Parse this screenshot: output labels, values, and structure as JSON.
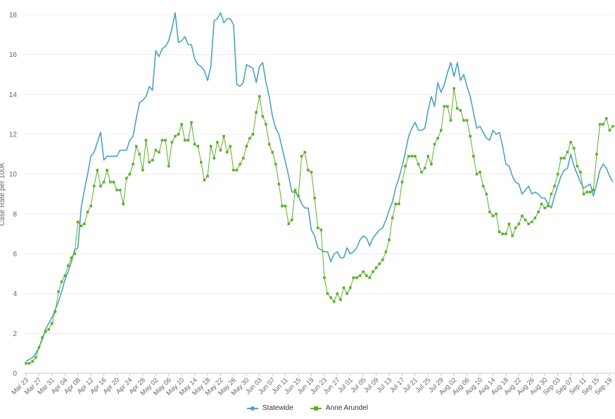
{
  "chart_data": {
    "type": "line",
    "title": "",
    "xlabel": "",
    "ylabel": "Case Rate per 100K",
    "ylim": [
      0,
      18
    ],
    "yticks": [
      0,
      2,
      4,
      6,
      8,
      10,
      12,
      14,
      16,
      18
    ],
    "grid": true,
    "legend_position": "bottom-center",
    "xtick_labels": [
      "Mar 23",
      "Mar 27",
      "Mar 31",
      "Apr 04",
      "Apr 08",
      "Apr 12",
      "Apr 16",
      "Apr 20",
      "Apr 24",
      "Apr 28",
      "May 02",
      "May 06",
      "May 10",
      "May 14",
      "May 18",
      "May 22",
      "May 26",
      "May 30",
      "Jun 03",
      "Jun 07",
      "Jun 11",
      "Jun 15",
      "Jun 19",
      "Jun 23",
      "Jun 27",
      "Jul 01",
      "Jul 05",
      "Jul 09",
      "Jul 13",
      "Jul 17",
      "Jul 21",
      "Jul 25",
      "Jul 29",
      "Aug 02",
      "Aug 06",
      "Aug 10",
      "Aug 14",
      "Aug 18",
      "Aug 22",
      "Aug 26",
      "Aug 30",
      "Sep 03",
      "Sep 07",
      "Sep 11",
      "Sep 15",
      "Sep 19"
    ],
    "series": [
      {
        "name": "Statewide",
        "color": "#4aa3bf",
        "marker": "none",
        "values": [
          0.6,
          0.7,
          0.8,
          1.0,
          1.3,
          1.7,
          2.2,
          2.5,
          2.8,
          3.2,
          3.6,
          4.1,
          4.7,
          5.1,
          5.6,
          6.2,
          6.3,
          8.3,
          9.2,
          10.0,
          10.9,
          11.1,
          11.6,
          12.1,
          10.7,
          10.9,
          10.9,
          10.9,
          10.9,
          11.2,
          11.2,
          11.2,
          11.7,
          11.9,
          12.8,
          13.6,
          13.7,
          13.9,
          14.4,
          14.2,
          16.2,
          15.9,
          16.3,
          16.4,
          16.7,
          17.3,
          18.1,
          16.6,
          16.7,
          16.9,
          16.5,
          16.5,
          15.8,
          15.5,
          15.4,
          15.2,
          14.7,
          15.4,
          17.7,
          17.8,
          18.1,
          17.6,
          17.8,
          17.8,
          17.5,
          14.5,
          14.4,
          14.6,
          15.5,
          15.4,
          15.3,
          14.6,
          15.4,
          15.6,
          14.6,
          13.9,
          12.9,
          12.3,
          12.0,
          11.3,
          10.6,
          9.9,
          9.1,
          9.1,
          8.9,
          8.5,
          8.3,
          8.3,
          7.2,
          6.9,
          6.3,
          6.2,
          6.1,
          6.1,
          5.6,
          6.0,
          6.1,
          5.8,
          5.8,
          6.3,
          6.0,
          6.1,
          6.3,
          6.7,
          6.9,
          6.8,
          6.4,
          6.8,
          7.0,
          7.2,
          7.3,
          7.7,
          8.2,
          8.6,
          9.3,
          9.8,
          10.4,
          11.1,
          11.9,
          12.3,
          12.6,
          12.2,
          12.2,
          12.3,
          13.2,
          13.9,
          13.4,
          14.6,
          14.1,
          14.5,
          15.1,
          15.6,
          14.9,
          15.6,
          14.7,
          15.0,
          14.4,
          13.9,
          13.1,
          12.3,
          12.4,
          12.1,
          11.8,
          11.7,
          12.2,
          12.0,
          12.1,
          11.4,
          10.5,
          10.4,
          9.9,
          9.6,
          9.5,
          9.0,
          9.2,
          9.4,
          9.0,
          9.1,
          9.0,
          8.8,
          8.8,
          8.5,
          8.3,
          8.9,
          9.4,
          9.9,
          10.2,
          10.3,
          11.0,
          10.4,
          10.0,
          9.6,
          9.3,
          9.4,
          9.5,
          8.9,
          9.5,
          10.2,
          10.5,
          10.3,
          9.9,
          9.6
        ]
      },
      {
        "name": "Anne Arundel",
        "color": "#5ab02a",
        "marker": "square",
        "values": [
          0.5,
          0.5,
          0.6,
          0.8,
          1.3,
          1.8,
          2.1,
          2.2,
          2.5,
          3.1,
          4.1,
          4.6,
          4.9,
          5.4,
          5.8,
          6.0,
          7.6,
          7.4,
          7.5,
          8.1,
          8.4,
          9.4,
          10.2,
          9.4,
          9.6,
          10.2,
          9.6,
          9.6,
          9.2,
          9.2,
          8.5,
          9.8,
          10.0,
          10.5,
          11.4,
          11.0,
          10.2,
          11.7,
          10.6,
          10.7,
          11.2,
          11.1,
          11.7,
          11.7,
          10.4,
          11.6,
          11.9,
          12.0,
          12.5,
          11.7,
          11.7,
          12.6,
          11.5,
          11.4,
          10.6,
          9.7,
          9.9,
          11.4,
          10.8,
          11.6,
          11.2,
          11.9,
          11.1,
          11.4,
          10.2,
          10.2,
          10.5,
          10.8,
          11.4,
          11.8,
          12.0,
          13.1,
          13.9,
          12.9,
          12.5,
          11.5,
          11.1,
          10.5,
          9.5,
          8.4,
          8.4,
          7.5,
          7.7,
          9.2,
          8.9,
          10.9,
          11.1,
          10.2,
          10.1,
          8.8,
          7.3,
          7.2,
          4.8,
          4.0,
          3.8,
          3.6,
          4.0,
          3.7,
          4.3,
          4.0,
          4.3,
          4.8,
          4.8,
          4.9,
          5.1,
          4.9,
          4.8,
          5.1,
          5.3,
          5.5,
          5.7,
          6.1,
          6.7,
          7.8,
          8.5,
          8.5,
          9.6,
          10.4,
          10.9,
          10.9,
          10.9,
          10.5,
          10.1,
          10.3,
          10.9,
          10.5,
          11.5,
          11.8,
          12.2,
          13.4,
          13.4,
          12.7,
          14.3,
          13.3,
          13.2,
          12.7,
          12.7,
          11.9,
          10.9,
          10.0,
          10.1,
          9.4,
          9.0,
          8.1,
          7.9,
          8.0,
          7.1,
          7.0,
          7.0,
          7.5,
          6.9,
          7.3,
          7.5,
          7.9,
          7.7,
          7.5,
          7.6,
          7.8,
          8.1,
          8.5,
          8.3,
          8.4,
          9.0,
          9.4,
          10.0,
          10.8,
          10.8,
          11.1,
          11.6,
          11.3,
          10.4,
          10.1,
          9.0,
          9.1,
          9.1,
          9.2,
          11.0,
          12.5,
          12.5,
          12.8,
          12.2,
          12.4
        ]
      }
    ]
  }
}
